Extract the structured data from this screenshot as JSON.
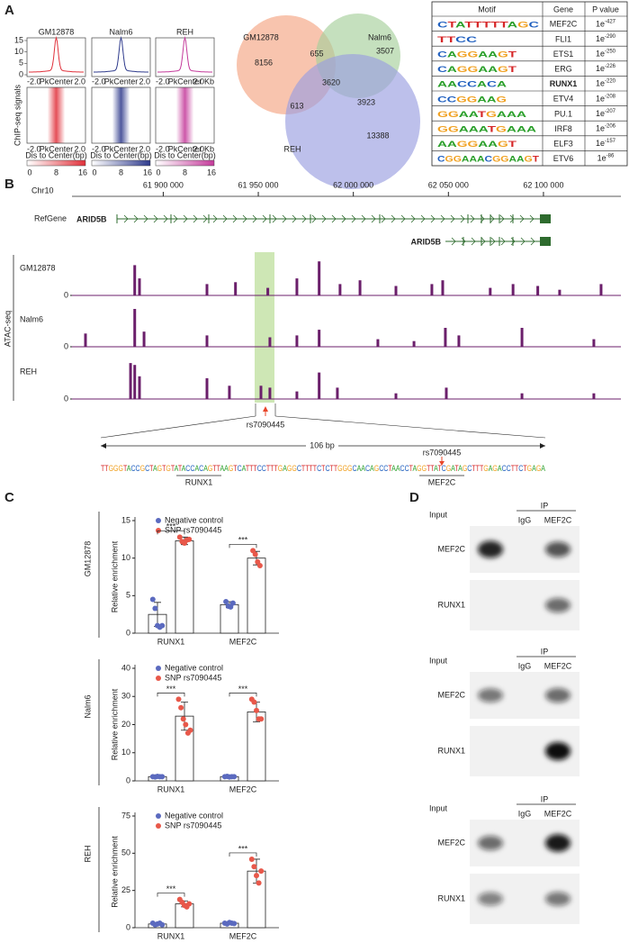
{
  "panel_labels": [
    "A",
    "B",
    "C",
    "D"
  ],
  "heatmaps": {
    "samples": [
      "GM12878",
      "Nalm6",
      "REH"
    ],
    "colors": [
      "#e0303a",
      "#2e3a8c",
      "#c43a9a"
    ],
    "profile_ticks": [
      0,
      5,
      10,
      15
    ],
    "x_labels": [
      "-2.0",
      "PkCenter",
      "2.0"
    ],
    "x_end_last": "2.0Kb",
    "x_title": "Dis to Center(bp)",
    "y_title": "ChIP-seq signals",
    "colorbar_ticks": [
      0,
      8,
      16
    ]
  },
  "venn": {
    "sets": [
      "GM12878",
      "Nalm6",
      "REH"
    ],
    "colors": [
      "#f4a582",
      "#a6cf9b",
      "#9a9ee0"
    ],
    "regions": [
      8156,
      655,
      3507,
      3620,
      613,
      3923,
      13388
    ]
  },
  "motif_table": {
    "header": [
      "Motif",
      "Gene",
      "P value"
    ],
    "rows": [
      {
        "logo": "CTATTTTTAGC",
        "gene": "MEF2C",
        "p_base": "1e",
        "p_exp": "-427"
      },
      {
        "logo": "TTCC",
        "gene": "FLI1",
        "p_base": "1e",
        "p_exp": "-290"
      },
      {
        "logo": "CAGGAAGT",
        "gene": "ETS1",
        "p_base": "1e",
        "p_exp": "-250"
      },
      {
        "logo": "CAGGAAGT",
        "gene": "ERG",
        "p_base": "1e",
        "p_exp": "-226"
      },
      {
        "logo": "AACCACA",
        "gene": "RUNX1",
        "p_base": "1e",
        "p_exp": "-220",
        "color": "#d62728"
      },
      {
        "logo": "CCGGAAG",
        "gene": "ETV4",
        "p_base": "1e",
        "p_exp": "-208"
      },
      {
        "logo": "GGAATGAAA",
        "gene": "PU.1",
        "p_base": "1e",
        "p_exp": "-207"
      },
      {
        "logo": "GGAAATGAAA",
        "gene": "IRF8",
        "p_base": "1e",
        "p_exp": "-206"
      },
      {
        "logo": "AAGGAAGT",
        "gene": "ELF3",
        "p_base": "1e",
        "p_exp": "-157"
      },
      {
        "logo": "CGGAAACGGAAGT",
        "gene": "ETV6",
        "p_base": "1e",
        "p_exp": "-86"
      }
    ]
  },
  "track": {
    "chrom": "Chr10",
    "xlim": [
      61852000,
      62136000
    ],
    "ticks": [
      {
        "value": 61900000,
        "label": "61 900 000"
      },
      {
        "value": 61950000,
        "label": "61 950 000"
      },
      {
        "value": 62000000,
        "label": "62 000 000"
      },
      {
        "value": 62050000,
        "label": "62 050 000"
      },
      {
        "value": 62100000,
        "label": "62 100 000"
      }
    ],
    "refgene_label": "RefGene",
    "genes": [
      "ARID5B",
      "ARID5B"
    ],
    "assay": "ATAC-seq",
    "color": "#6b1f6b",
    "ylim": [
      0,
      1
    ],
    "yticks": [
      0
    ],
    "snp": "rs7090445",
    "tracks": [
      {
        "name": "GM12878",
        "x": [
          61885000,
          61887500,
          61923000,
          61938000,
          61955000,
          61970300,
          61982000,
          61993000,
          62003500,
          62022400,
          62041300,
          62047000,
          62072000,
          62084000,
          62097000,
          62108500,
          62130300
        ],
        "values": [
          0.8,
          0.45,
          0.3,
          0.35,
          0.2,
          0.45,
          0.9,
          0.3,
          0.4,
          0.25,
          0.3,
          0.4,
          0.2,
          0.3,
          0.25,
          0.15,
          0.3
        ]
      },
      {
        "name": "Nalm6",
        "x": [
          61859100,
          61885000,
          61889900,
          61923000,
          61956100,
          61970300,
          61982000,
          62012900,
          62031900,
          62048400,
          62055500,
          62088700,
          62126500
        ],
        "values": [
          0.35,
          1.0,
          0.4,
          0.3,
          0.25,
          0.3,
          0.45,
          0.2,
          0.15,
          0.5,
          0.3,
          0.5,
          0.2
        ]
      },
      {
        "name": "REH",
        "x": [
          61882800,
          61885000,
          61887500,
          61923000,
          61934800,
          61951400,
          61956100,
          61970300,
          61982000,
          61991600,
          62022400,
          62048900,
          62088700,
          62126500
        ],
        "values": [
          0.95,
          0.9,
          0.6,
          0.55,
          0.35,
          0.35,
          0.3,
          0.2,
          0.7,
          0.3,
          0.15,
          0.3,
          0.15,
          0.15
        ]
      }
    ]
  },
  "zoom": {
    "length": "106 bp",
    "snp": "rs7090445",
    "sequence": "TTGGGTACCGCTAGTGTATACCACAGTTAAGTCATTTCCTTTGAGGCTTTTCTCTTGGGCAACAGCCTAACCTAGGTTATCGATAGCTTTGAGACCTTCTGAGA",
    "motifs": [
      "RUNX1",
      "MEF2C"
    ]
  },
  "chart_data": [
    {
      "type": "bar",
      "row_label": "GM12878",
      "y_label": "Relative enrichment",
      "categories": [
        "RUNX1",
        "MEF2C"
      ],
      "ylim": [
        0,
        15
      ],
      "yticks": [
        0,
        5,
        10,
        15
      ],
      "significance": [
        "***",
        "***"
      ],
      "series": [
        {
          "name": "Negative control",
          "color": "#5b6abf",
          "values": [
            2.5,
            3.8
          ],
          "errors": [
            1.6,
            0.4
          ],
          "points": [
            [
              4.5,
              3.3,
              1.0,
              0.8,
              1.0
            ],
            [
              4.2,
              3.6,
              3.5,
              4.0
            ]
          ]
        },
        {
          "name": "SNP rs7090445",
          "color": "#e8584a",
          "values": [
            12.3,
            10.0
          ],
          "errors": [
            0.5,
            0.9
          ],
          "points": [
            [
              12.8,
              12.2,
              12.0,
              12.4,
              12.5
            ],
            [
              11.0,
              10.5,
              9.5,
              9.0
            ]
          ]
        }
      ]
    },
    {
      "type": "bar",
      "row_label": "Nalm6",
      "y_label": "Relative enrichment",
      "categories": [
        "RUNX1",
        "MEF2C"
      ],
      "ylim": [
        0,
        40
      ],
      "yticks": [
        0,
        10,
        20,
        30,
        40
      ],
      "significance": [
        "***",
        "***"
      ],
      "series": [
        {
          "name": "Negative control",
          "color": "#5b6abf",
          "values": [
            1.5,
            1.5
          ],
          "errors": [
            0.2,
            0.2
          ],
          "points": [
            [
              1.5,
              1.4,
              1.6,
              1.5,
              1.5
            ],
            [
              1.5,
              1.6,
              1.4,
              1.5,
              1.5
            ]
          ]
        },
        {
          "name": "SNP rs7090445",
          "color": "#e8584a",
          "values": [
            23,
            24.5
          ],
          "errors": [
            5,
            3.5
          ],
          "points": [
            [
              29,
              26,
              22,
              20,
              17,
              18
            ],
            [
              29,
              28,
              25,
              22,
              22
            ]
          ]
        }
      ]
    },
    {
      "type": "bar",
      "row_label": "REH",
      "y_label": "Relative enrichment",
      "categories": [
        "RUNX1",
        "MEF2C"
      ],
      "ylim": [
        0,
        75
      ],
      "yticks": [
        0,
        25,
        50,
        75
      ],
      "significance": [
        "***",
        "***"
      ],
      "series": [
        {
          "name": "Negative control",
          "color": "#5b6abf",
          "values": [
            2.5,
            3
          ],
          "errors": [
            0.6,
            0.6
          ],
          "points": [
            [
              3,
              2,
              2.5,
              3,
              2
            ],
            [
              3,
              2.5,
              3.5,
              3,
              2.8
            ]
          ]
        },
        {
          "name": "SNP rs7090445",
          "color": "#e8584a",
          "values": [
            16,
            38
          ],
          "errors": [
            2,
            8
          ],
          "points": [
            [
              19,
              17,
              15,
              14,
              16
            ],
            [
              46,
              41,
              35,
              30,
              38
            ]
          ]
        }
      ]
    }
  ],
  "coip": {
    "blocks": [
      {
        "input": "Input",
        "ip": "IP",
        "lanes": [
          "IgG",
          "MEF2C"
        ],
        "rows": [
          "MEF2C",
          "RUNX1"
        ]
      },
      {
        "input": "Input",
        "ip": "IP",
        "lanes": [
          "IgG",
          "MEF2C"
        ],
        "rows": [
          "MEF2C",
          "RUNX1"
        ]
      },
      {
        "input": "Input",
        "ip": "IP",
        "lanes": [
          "IgG",
          "MEF2C"
        ],
        "rows": [
          "MEF2C",
          "RUNX1"
        ]
      }
    ]
  }
}
